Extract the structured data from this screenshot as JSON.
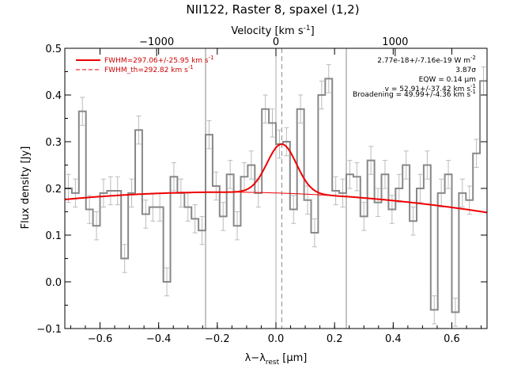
{
  "chart_data": {
    "type": "line",
    "title": "NII122, Raster 8, spaxel (1,2)",
    "xlabel": "λ−λ",
    "xlabel_sub": "rest",
    "xlabel_unit": " [μm]",
    "ylabel": "Flux density [Jy]",
    "top_xlabel": "Velocity [km s",
    "top_xlabel_sup": "-1",
    "top_xlabel_end": "]",
    "xlim": [
      -0.72,
      0.72
    ],
    "ylim": [
      -0.1,
      0.5
    ],
    "xticks": [
      -0.6,
      -0.4,
      -0.2,
      0.0,
      0.2,
      0.4,
      0.6
    ],
    "xtick_labels": [
      "−0.6",
      "−0.4",
      "−0.2",
      "0.0",
      "0.2",
      "0.4",
      "0.6"
    ],
    "yticks": [
      -0.1,
      0.0,
      0.1,
      0.2,
      0.3,
      0.4,
      0.5
    ],
    "ytick_labels": [
      "−0.1",
      "0.0",
      "0.1",
      "0.2",
      "0.3",
      "0.4",
      "0.5"
    ],
    "top_ticks_um": [
      -0.4068,
      0.0,
      0.4068
    ],
    "top_tick_labels": [
      "−1000",
      "0",
      "1000"
    ],
    "vlines_solid": [
      -0.24,
      0.24
    ],
    "vline_dashed": 0.02,
    "vline_zero": 0.0,
    "spectrum": {
      "name": "data",
      "color": "#888888",
      "bin_width": 0.024,
      "x": [
        -0.72,
        -0.696,
        -0.672,
        -0.648,
        -0.624,
        -0.6,
        -0.576,
        -0.552,
        -0.528,
        -0.504,
        -0.48,
        -0.456,
        -0.432,
        -0.408,
        -0.384,
        -0.36,
        -0.336,
        -0.312,
        -0.288,
        -0.264,
        -0.24,
        -0.216,
        -0.192,
        -0.168,
        -0.144,
        -0.12,
        -0.096,
        -0.072,
        -0.048,
        -0.024,
        0.0,
        0.024,
        0.048,
        0.072,
        0.096,
        0.12,
        0.144,
        0.168,
        0.192,
        0.216,
        0.24,
        0.264,
        0.288,
        0.312,
        0.336,
        0.36,
        0.384,
        0.408,
        0.432,
        0.456,
        0.48,
        0.504,
        0.528,
        0.552,
        0.576,
        0.6,
        0.624,
        0.648,
        0.672,
        0.696
      ],
      "y": [
        0.2,
        0.19,
        0.365,
        0.155,
        0.12,
        0.19,
        0.195,
        0.195,
        0.05,
        0.19,
        0.325,
        0.145,
        0.16,
        0.16,
        0.0,
        0.225,
        0.19,
        0.16,
        0.135,
        0.11,
        0.315,
        0.205,
        0.14,
        0.23,
        0.12,
        0.225,
        0.25,
        0.19,
        0.37,
        0.34,
        0.295,
        0.3,
        0.155,
        0.37,
        0.175,
        0.105,
        0.4,
        0.435,
        0.195,
        0.19,
        0.23,
        0.225,
        0.14,
        0.26,
        0.17,
        0.23,
        0.155,
        0.2,
        0.25,
        0.13,
        0.2,
        0.25,
        -0.06,
        0.19,
        0.23,
        -0.065,
        0.19,
        0.175,
        0.275,
        0.43
      ],
      "err": 0.03
    },
    "fit": {
      "name": "FWHM=297.06+/-25.95 km s",
      "color": "#ee0000",
      "center": 0.02,
      "amplitude": 0.105,
      "fwhm_um": 0.118,
      "baseline_peak": 0.192,
      "baseline_center": -0.18,
      "baseline_curv": 0.0537
    },
    "legend": [
      {
        "label": "FWHM=297.06+/-25.95 km s",
        "sup": "-1",
        "style": "solid"
      },
      {
        "label": "FWHM_th=292.82 km s",
        "sup": "-1",
        "style": "dashed"
      }
    ],
    "annotations": [
      {
        "text": "2.77e-18+/-7.16e-19 W m",
        "sup": "-2"
      },
      {
        "text": "3.87σ",
        "sup": ""
      },
      {
        "text": "EQW = 0.14 μm",
        "sup": ""
      },
      {
        "text": "v = 52.91+/-37.42 km s",
        "sup": "-1"
      },
      {
        "text": "Broadening = 49.99+/-4.36 km s",
        "sup": "-1"
      }
    ]
  }
}
